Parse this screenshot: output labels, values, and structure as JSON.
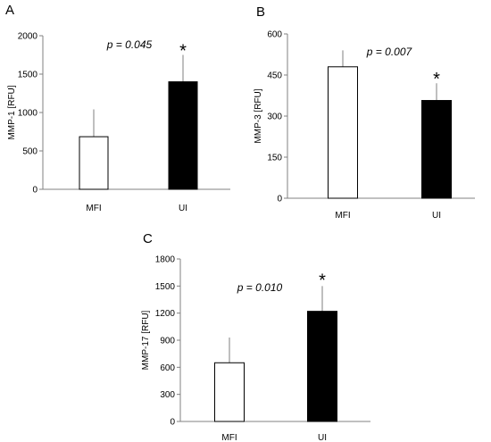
{
  "chart_data": [
    {
      "type": "bar",
      "panel": "A",
      "ylabel": "MMP-1 [RFU]",
      "categories": [
        "MFI",
        "UI"
      ],
      "values": [
        685,
        1400
      ],
      "errors": [
        355,
        350
      ],
      "ylim": [
        0,
        2000
      ],
      "yticks": [
        0,
        500,
        1000,
        1500,
        2000
      ],
      "bar_colors": [
        "#ffffff",
        "#000000"
      ],
      "p_value": "p = 0.045",
      "significance": "*",
      "significance_category": "UI"
    },
    {
      "type": "bar",
      "panel": "B",
      "ylabel": "MMP-3 [RFU]",
      "categories": [
        "MFI",
        "UI"
      ],
      "values": [
        480,
        357
      ],
      "errors": [
        60,
        63
      ],
      "ylim": [
        0,
        600
      ],
      "yticks": [
        0,
        150,
        300,
        450,
        600
      ],
      "bar_colors": [
        "#ffffff",
        "#000000"
      ],
      "p_value": "p = 0.007",
      "significance": "*",
      "significance_category": "UI"
    },
    {
      "type": "bar",
      "panel": "C",
      "ylabel": "MMP-17 [RFU]",
      "categories": [
        "MFI",
        "UI"
      ],
      "values": [
        650,
        1220
      ],
      "errors": [
        280,
        280
      ],
      "ylim": [
        0,
        1800
      ],
      "yticks": [
        0,
        300,
        600,
        900,
        1200,
        1500,
        1800
      ],
      "bar_colors": [
        "#ffffff",
        "#000000"
      ],
      "p_value": "p = 0.010",
      "significance": "*",
      "significance_category": "UI"
    }
  ]
}
